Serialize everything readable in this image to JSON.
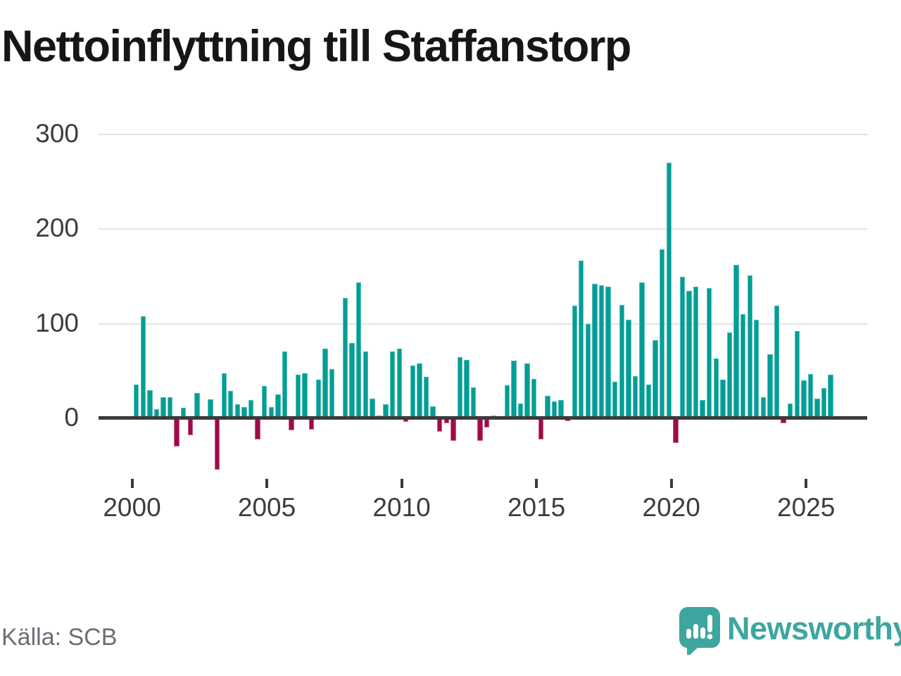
{
  "title": "Nettoinflyttning till Staffanstorp",
  "source_note": "Källa: SCB",
  "branding": {
    "name": "Newsworthy",
    "logo_icon": "newsworthy-speech-bubble-chart-icon"
  },
  "colors": {
    "positive_bar": "#009e96",
    "negative_bar": "#a00a48",
    "baseline": "#3b3b3b",
    "gridline": "#e4e4e4",
    "axis_text": "#3c3c3c",
    "brand_teal": "#3da69f",
    "title_text": "#161616",
    "source_text": "#6d6d77"
  },
  "chart_data": {
    "type": "bar",
    "title": "Nettoinflyttning till Staffanstorp",
    "frequency": "quarterly",
    "start_period": "2000Q1",
    "end_period": "2025Q4",
    "values": [
      36,
      108,
      30,
      10,
      22,
      22,
      -30,
      11,
      -18,
      27,
      1,
      20,
      -54,
      48,
      29,
      15,
      12,
      19,
      -22,
      34,
      12,
      25,
      71,
      -13,
      46,
      48,
      -12,
      41,
      74,
      52,
      1,
      127,
      80,
      144,
      71,
      21,
      3,
      15,
      71,
      74,
      -4,
      56,
      58,
      44,
      13,
      -14,
      -5,
      -24,
      65,
      62,
      33,
      -24,
      -10,
      3,
      2,
      35,
      61,
      16,
      58,
      42,
      -22,
      24,
      18,
      19,
      -3,
      119,
      167,
      100,
      142,
      141,
      139,
      39,
      120,
      104,
      45,
      144,
      36,
      83,
      179,
      270,
      -26,
      150,
      135,
      139,
      19,
      138,
      63,
      41,
      91,
      162,
      110,
      151,
      104,
      22,
      68,
      119,
      -5,
      16,
      92,
      40,
      47,
      21,
      32,
      46
    ],
    "series_name": "",
    "xlabel": "",
    "ylabel": "",
    "ylim": [
      -80,
      310
    ],
    "ytick_labels": [
      "0",
      "100",
      "200",
      "300"
    ],
    "yticks": [
      0,
      100,
      200,
      300
    ],
    "xtick_labels": [
      "2000",
      "2005",
      "2010",
      "2015",
      "2020",
      "2025"
    ],
    "xtick_years": [
      2000,
      2005,
      2010,
      2015,
      2020,
      2025
    ],
    "grid": "horizontal",
    "legend": "none"
  }
}
